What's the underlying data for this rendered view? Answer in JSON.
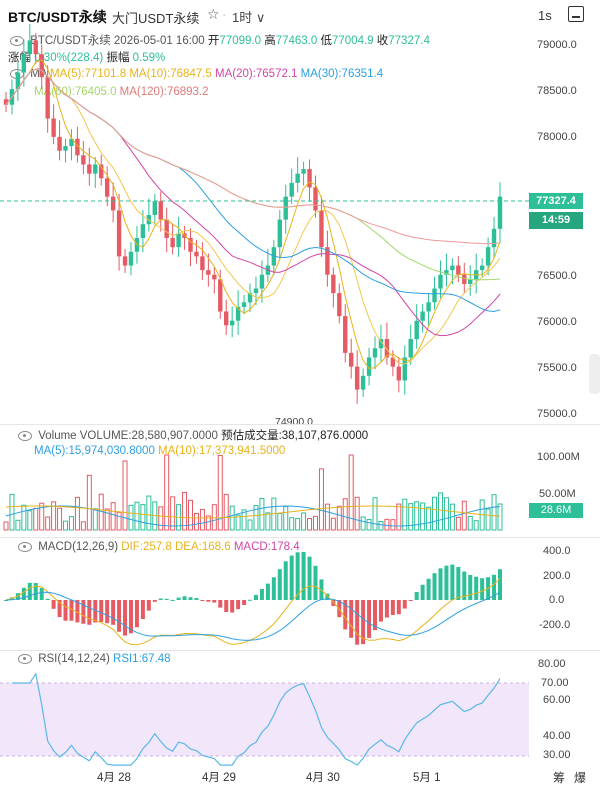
{
  "header": {
    "symbol": "BTC/USDT永续",
    "subtitle": "大门USDT永续",
    "timeframe": "1时",
    "timeframe_caret": "∨",
    "interval_label": "1s"
  },
  "ohlc_line": {
    "prefix": "BTC/USDT永续",
    "datetime": "2026-05-01 16:00",
    "open_label": "开",
    "open": "77099.0",
    "high_label": "高",
    "high": "77463.0",
    "low_label": "低",
    "low": "77004.9",
    "close_label": "收",
    "close": "77327.4",
    "change_label": "涨幅",
    "change": "0.30%(228.4)",
    "amp_label": "振幅",
    "amp": "0.59%"
  },
  "ma_line": {
    "label": "MA",
    "ma5": "MA(5):77101.8",
    "ma10": "MA(10):76847.5",
    "ma20": "MA(20):76572.1",
    "ma30": "MA(30):76351.4",
    "ma60": "MA(60):76405.0",
    "ma120": "MA(120):76893.2"
  },
  "price_axis": [
    "79000.0",
    "78500.0",
    "78000.0",
    "77500.0",
    "77000.0",
    "76500.0",
    "76000.0",
    "75500.0",
    "75000.0"
  ],
  "price_tag": "77327.4",
  "countdown": "14:59",
  "low_marker": "74900.0",
  "volume": {
    "label": "Volume",
    "value": "VOLUME:28,580,907.0000",
    "est": "预估成交量:38,107,876.0000",
    "ma5": "MA(5):15,974,030.8000",
    "ma10": "MA(10):17,373,941.5000",
    "axis": [
      "100.00M",
      "50.00M"
    ],
    "tag": "28.6M"
  },
  "macd": {
    "label": "MACD(12,26,9)",
    "dif": "DIF:257.8",
    "dea": "DEA:168.6",
    "macd": "MACD:178.4",
    "axis": [
      "400.0",
      "200.0",
      "0.0",
      "-200.0"
    ]
  },
  "rsi": {
    "label": "RSI(14,12,24)",
    "rsi1": "RSI1:67.48",
    "axis": [
      "80.00",
      "70.00",
      "60.00",
      "40.00",
      "30.00"
    ]
  },
  "dates": [
    "4月 28",
    "4月 29",
    "4月 30",
    "5月 1"
  ],
  "corner_labels": [
    "筹",
    "爆"
  ],
  "colors": {
    "up": "#2cbf98",
    "down": "#e65a64",
    "ma5": "#e8b318",
    "ma10": "#e8b318",
    "ma20": "#d545a6",
    "ma30": "#2d9fe2",
    "ma60": "#a3d86c",
    "ma120": "#f09a9a",
    "dif": "#e8b318",
    "dea": "#2d9fe2",
    "rsi": "#5bb8e8",
    "rsi_band": "#f2e6fb"
  },
  "chart_data": [
    {
      "type": "candlestick",
      "title": "BTC/USDT永续 1时",
      "x": [
        "4月 28",
        "4月 29",
        "4月 30",
        "5月 1"
      ],
      "ylim": [
        74800,
        79300
      ],
      "closes": [
        78350,
        78520,
        78700,
        78900,
        79050,
        78900,
        78650,
        78200,
        78000,
        77850,
        77900,
        77980,
        77800,
        77700,
        77600,
        77700,
        77550,
        77350,
        77200,
        76700,
        76600,
        76750,
        76900,
        77050,
        77150,
        77300,
        77100,
        76900,
        76800,
        76950,
        76900,
        76750,
        76700,
        76550,
        76500,
        76450,
        76100,
        75950,
        76000,
        76150,
        76200,
        76300,
        76350,
        76500,
        76600,
        76800,
        77100,
        77350,
        77500,
        77600,
        77650,
        77450,
        77200,
        76800,
        76500,
        76300,
        76050,
        75650,
        75500,
        75250,
        75400,
        75600,
        75700,
        75800,
        75600,
        75500,
        75350,
        75600,
        75800,
        76000,
        76100,
        76200,
        76350,
        76500,
        76550,
        76600,
        76500,
        76400,
        76450,
        76550,
        76600,
        76800,
        77000,
        77350
      ],
      "volume_axis": [
        "100.00M",
        "50.00M"
      ],
      "macd": {
        "dif": 257.8,
        "dea": 168.6,
        "hist": 178.4
      },
      "rsi": 67.48
    }
  ]
}
